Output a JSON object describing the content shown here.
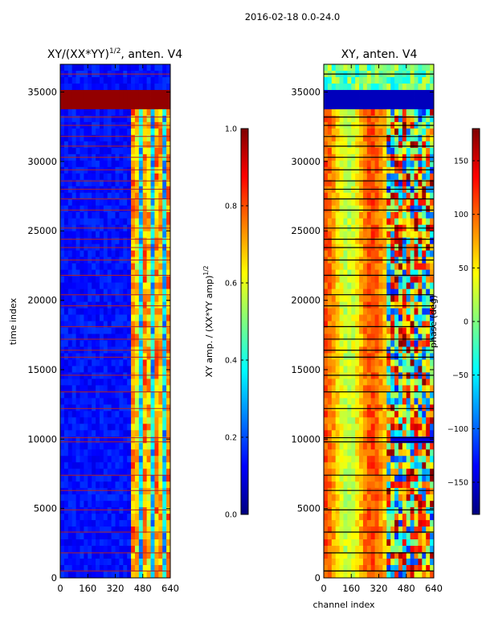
{
  "figure": {
    "suptitle": "2016-02-18 0.0-24.0"
  },
  "colors": {
    "jet": [
      "#00007f",
      "#0000ff",
      "#007fff",
      "#00ffff",
      "#7fff7f",
      "#ffff00",
      "#ff7f00",
      "#ff0000",
      "#7f0000"
    ],
    "flag_line": "#b22222",
    "axis": "#000000"
  },
  "chart_data": [
    {
      "type": "heatmap",
      "name": "amplitude",
      "title": "XY/(XX*YY)",
      "title_sup": "1/2",
      "title_suffix": ", anten. V4",
      "xlabel": "",
      "ylabel": "time index",
      "xlim": [
        0,
        640
      ],
      "ylim": [
        0,
        37000
      ],
      "xticks": [
        0,
        160,
        320,
        480,
        640
      ],
      "yticks": [
        0,
        5000,
        10000,
        15000,
        20000,
        25000,
        30000,
        35000
      ],
      "dominant_value": 0.1,
      "active_channel_range": [
        400,
        640
      ],
      "colorbar": {
        "label_main": "XY amp. / (XX*YY amp)",
        "label_sup": "1/2",
        "range": [
          0.0,
          1.0
        ],
        "ticks": [
          "0.0",
          "0.2",
          "0.4",
          "0.6",
          "0.8",
          "1.0"
        ],
        "tick_values": [
          0.0,
          0.2,
          0.4,
          0.6,
          0.8,
          1.0
        ]
      }
    },
    {
      "type": "heatmap",
      "name": "phase",
      "title": "XY, anten. V4",
      "xlabel": "channel index",
      "ylabel": "",
      "xlim": [
        0,
        640
      ],
      "ylim": [
        0,
        37000
      ],
      "xticks": [
        0,
        160,
        320,
        480,
        640
      ],
      "yticks": [
        0,
        5000,
        10000,
        15000,
        20000,
        25000,
        30000,
        35000
      ],
      "colorbar": {
        "label": "phase (deg)",
        "range": [
          -180,
          180
        ],
        "ticks": [
          "−150",
          "−100",
          "−50",
          "0",
          "50",
          "100",
          "150"
        ],
        "tick_values": [
          -150,
          -100,
          -50,
          0,
          50,
          100,
          150
        ]
      }
    }
  ],
  "flag_rows": [
    500,
    1800,
    3300,
    4900,
    6300,
    7400,
    9800,
    10100,
    12200,
    13400,
    14600,
    15900,
    16400,
    17200,
    18100,
    19600,
    20400,
    21800,
    22900,
    23800,
    24400,
    25200,
    26500,
    27300,
    28000,
    28600,
    29400,
    30300,
    31100,
    31800,
    32600,
    33200,
    36300
  ]
}
